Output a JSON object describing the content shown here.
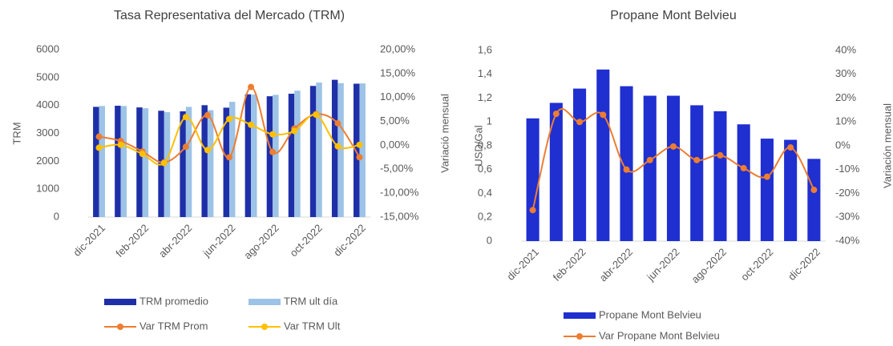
{
  "chart_data": [
    {
      "type": "bar",
      "title": "Tasa Representativa del Mercado (TRM)",
      "ylabel": "TRM",
      "y2label": "Variació mensual",
      "categories": [
        "dic-2021",
        null,
        "feb-2022",
        null,
        "abr-2022",
        null,
        "jun-2022",
        null,
        "ago-2022",
        null,
        "oct-2022",
        null,
        "dic-2022"
      ],
      "ylim": [
        0,
        6000
      ],
      "yticks": [
        0,
        1000,
        2000,
        3000,
        4000,
        5000,
        6000
      ],
      "y2lim": [
        -15,
        20
      ],
      "y2ticks": [
        {
          "value": -15,
          "label": "-15,00%"
        },
        {
          "value": -10,
          "label": "-10,00%"
        },
        {
          "value": -5,
          "label": "-5,00%"
        },
        {
          "value": 0,
          "label": "0,00%"
        },
        {
          "value": 5,
          "label": "5,00%"
        },
        {
          "value": 10,
          "label": "10,00%"
        },
        {
          "value": 15,
          "label": "15,00%"
        },
        {
          "value": 20,
          "label": "20,00%"
        }
      ],
      "series": [
        {
          "name": "TRM promedio",
          "type": "bar",
          "color": "#1f2fa8",
          "values": [
            3950,
            3990,
            3930,
            3810,
            3790,
            4010,
            3920,
            4400,
            4330,
            4420,
            4700,
            4920,
            4780
          ]
        },
        {
          "name": "TRM ult día",
          "type": "bar",
          "color": "#9dc3e6",
          "values": [
            3980,
            3980,
            3900,
            3760,
            3950,
            3830,
            4130,
            4390,
            4380,
            4530,
            4820,
            4800,
            4790
          ]
        },
        {
          "name": "Var TRM Prom",
          "type": "line",
          "axis": "y2",
          "color": "#ed7d31",
          "values": [
            1.8,
            0.9,
            -1.3,
            -3.6,
            -0.3,
            6.3,
            -2.5,
            12.2,
            -1.4,
            3.5,
            6.5,
            4.6,
            -2.5
          ]
        },
        {
          "name": "Var TRM Ult",
          "type": "line",
          "axis": "y2",
          "color": "#ffc000",
          "values": [
            -0.5,
            0.1,
            -1.8,
            -3.7,
            5.9,
            -1.0,
            5.5,
            4.3,
            2.3,
            3.0,
            6.4,
            -0.2,
            0.1
          ]
        }
      ]
    },
    {
      "type": "bar",
      "title": "Propane Mont Belvieu",
      "ylabel": "USD/Gal",
      "y2label": "Variación mensual",
      "categories": [
        "dic-2021",
        null,
        "feb-2022",
        null,
        "abr-2022",
        null,
        "jun-2022",
        null,
        "ago-2022",
        null,
        "oct-2022",
        null,
        "dic-2022"
      ],
      "ylim": [
        0,
        1.6
      ],
      "yticks": [
        0,
        {
          "value": 0.2,
          "label": "0,2"
        },
        {
          "value": 0.4,
          "label": "0,4"
        },
        {
          "value": 0.6,
          "label": "0,6"
        },
        {
          "value": 0.8,
          "label": "0,8"
        },
        1,
        {
          "value": 1.2,
          "label": "1,2"
        },
        {
          "value": 1.4,
          "label": "1,4"
        },
        {
          "value": 1.6,
          "label": "1,6"
        }
      ],
      "y2lim": [
        -40,
        40
      ],
      "y2ticks": [
        {
          "value": -40,
          "label": "-40%"
        },
        {
          "value": -30,
          "label": "-30%"
        },
        {
          "value": -20,
          "label": "-20%"
        },
        {
          "value": -10,
          "label": "-10%"
        },
        {
          "value": 0,
          "label": "0%"
        },
        {
          "value": 10,
          "label": "10%"
        },
        {
          "value": 20,
          "label": "20%"
        },
        {
          "value": 30,
          "label": "30%"
        },
        {
          "value": 40,
          "label": "40%"
        }
      ],
      "series": [
        {
          "name": "Propane Mont Belvieu",
          "type": "bar",
          "color": "#1f2fd0",
          "values": [
            1.03,
            1.16,
            1.28,
            1.44,
            1.3,
            1.22,
            1.22,
            1.14,
            1.09,
            0.98,
            0.86,
            0.85,
            0.69
          ]
        },
        {
          "name": "Var Propane Mont Belvieu",
          "type": "line",
          "axis": "y2",
          "color": "#ed7d31",
          "values": [
            -27,
            13.4,
            10,
            13,
            -10,
            -6,
            -0.3,
            -6,
            -4,
            -9.4,
            -13,
            -0.7,
            -18.5
          ]
        }
      ]
    }
  ]
}
